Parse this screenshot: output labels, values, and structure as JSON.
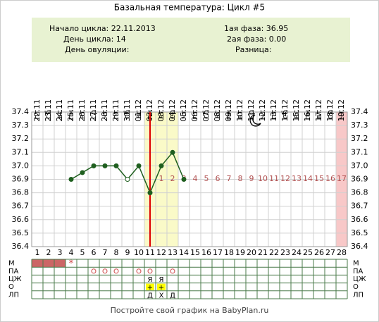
{
  "title": "Базальная температура: Цикл #5",
  "info": {
    "left": [
      "Начало цикла: 22.11.2013",
      "День цикла: 14",
      "День овуляции:"
    ],
    "right": [
      "1ая фаза: 36.95",
      "2ая фаза: 0.00",
      "Разница:"
    ]
  },
  "chart_data": {
    "type": "line",
    "categories": [
      1,
      2,
      3,
      4,
      5,
      6,
      7,
      8,
      9,
      10,
      11,
      12,
      13,
      14,
      15,
      16,
      17,
      18,
      19,
      20,
      21,
      22,
      23,
      24,
      25,
      26,
      27,
      28
    ],
    "dates": [
      "22.11",
      "23.11",
      "24.11",
      "25.11",
      "26.11",
      "27.11",
      "28.11",
      "29.11",
      "30.11",
      "01.12",
      "02.12",
      "03.12",
      "04.12",
      "05.12",
      "06.12",
      "07.12",
      "08.12",
      "09.12",
      "10.12",
      "11.12",
      "12.12",
      "13.12",
      "14.12",
      "15.12",
      "16.12",
      "17.12",
      "18.12",
      "19.12"
    ],
    "weekdays": [
      "пт",
      "сб",
      "вс",
      "пн",
      "вт",
      "ср",
      "чт",
      "пт",
      "сб",
      "вс",
      "пн",
      "вт",
      "ср",
      "чт",
      "пт",
      "сб",
      "вс",
      "пн",
      "вт",
      "ср",
      "чт",
      "пт",
      "сб",
      "вс",
      "пн",
      "вт",
      "ср",
      "чт"
    ],
    "values": [
      null,
      null,
      null,
      36.9,
      36.95,
      37.0,
      37.0,
      37.0,
      36.9,
      37.0,
      36.8,
      37.0,
      37.1,
      36.9,
      null,
      null,
      null,
      null,
      null,
      null,
      null,
      null,
      null,
      null,
      null,
      null,
      null,
      null
    ],
    "color": "#1f5f1f",
    "hollow_days": [
      9
    ],
    "ylim": [
      36.4,
      37.4
    ],
    "yticks": [
      36.4,
      36.5,
      36.6,
      36.7,
      36.8,
      {
        "value": 36.9,
        "label": "36.9"
      },
      {
        "value": 37.0,
        "label": "37.0"
      },
      37.1,
      37.2,
      37.3,
      37.4
    ],
    "grid": true,
    "ovulation_day": 11,
    "ovulation_color": "#dd0000",
    "highlight_days": [
      11,
      13
    ],
    "highlight_color": "#fafac8",
    "last_day_color": "#f8c8c8",
    "post_ovulation_days": [
      1,
      2,
      3,
      4,
      5,
      6,
      7,
      8,
      9,
      10,
      11,
      12,
      13,
      14,
      15,
      16,
      17
    ],
    "post_ovulation_color": "#b05050"
  },
  "table": {
    "rows": [
      {
        "label": "М",
        "filled_days": [
          1,
          2,
          3
        ],
        "fill": "#cc6666",
        "cells": [
          {
            "day": 4,
            "text": "*"
          }
        ]
      },
      {
        "label": "ПА",
        "circle_days": [
          6,
          7,
          8,
          10,
          11,
          13
        ]
      },
      {
        "label": "ЦЖ",
        "cells": [
          {
            "day": 11,
            "text": "Я"
          },
          {
            "day": 12,
            "text": "Я"
          }
        ]
      },
      {
        "label": "О",
        "fill": "#ffff00",
        "cells": [
          {
            "day": 11,
            "text": "+"
          },
          {
            "day": 12,
            "text": "+"
          }
        ]
      },
      {
        "label": "ЛП",
        "cells": [
          {
            "day": 11,
            "text": "Д"
          },
          {
            "day": 12,
            "text": "Х"
          },
          {
            "day": 13,
            "text": "Д"
          }
        ]
      }
    ]
  },
  "footer": "Постройте свой график на BabyPlan.ru"
}
